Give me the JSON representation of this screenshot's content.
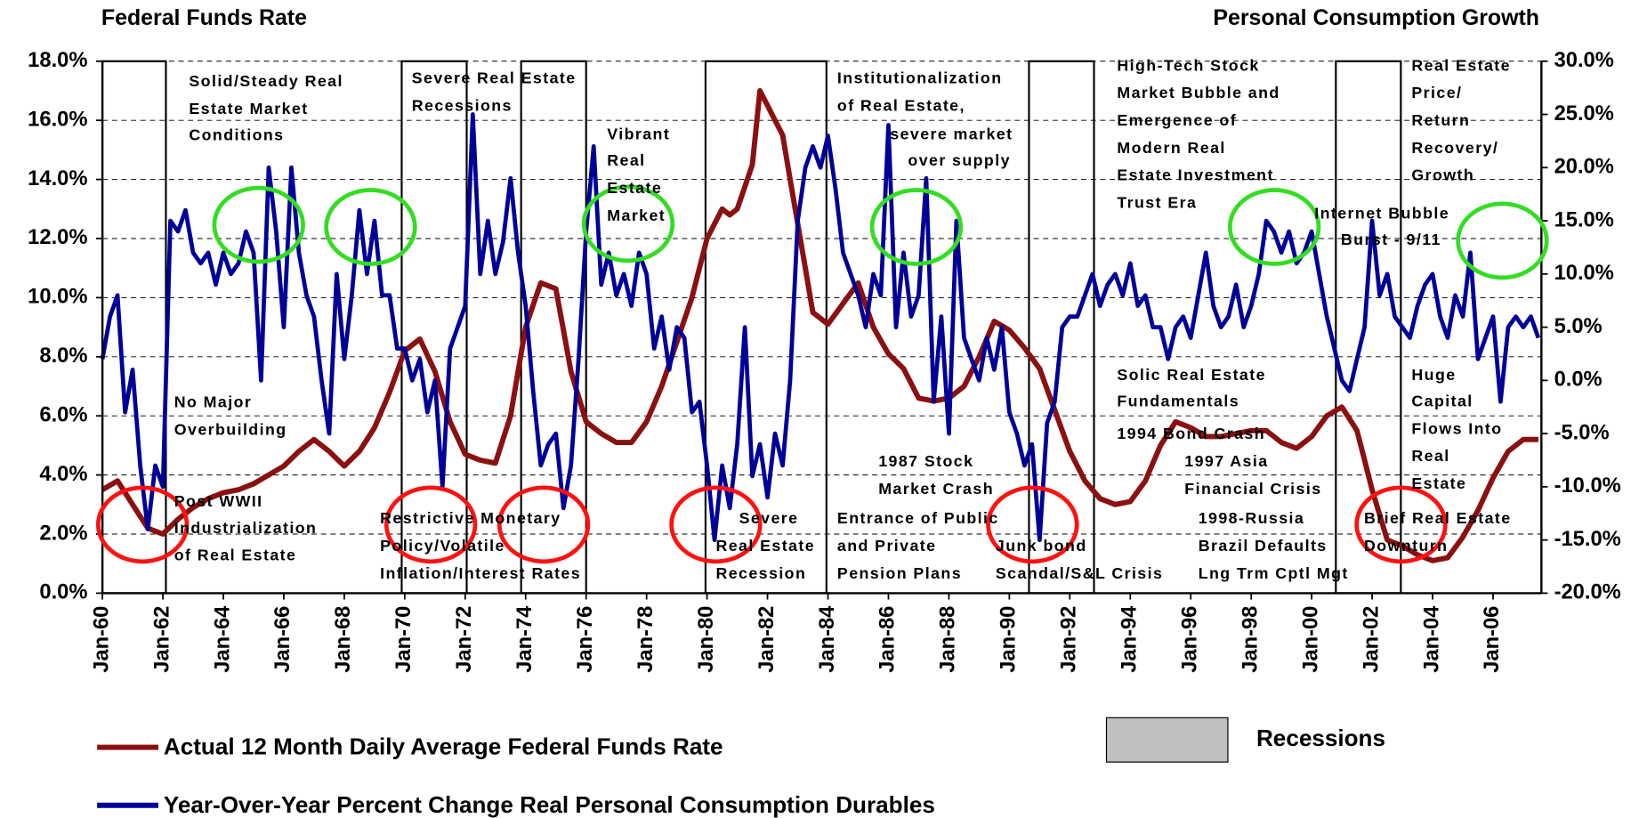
{
  "chart_data": {
    "type": "line",
    "title": "Federal Funds Rate",
    "y2_title": "Personal Consumption Growth",
    "x": [
      1960,
      1960.25,
      1960.5,
      1960.75,
      1961,
      1961.25,
      1961.5,
      1961.75,
      1962,
      1962.25,
      1962.5,
      1962.75,
      1963,
      1963.25,
      1963.5,
      1963.75,
      1964,
      1964.25,
      1964.5,
      1964.75,
      1965,
      1965.25,
      1965.5,
      1965.75,
      1966,
      1966.25,
      1966.5,
      1966.75,
      1967,
      1967.25,
      1967.5,
      1967.75,
      1968,
      1968.25,
      1968.5,
      1968.75,
      1969,
      1969.25,
      1969.5,
      1969.75,
      1970,
      1970.25,
      1970.5,
      1970.75,
      1971,
      1971.25,
      1971.5,
      1971.75,
      1972,
      1972.25,
      1972.5,
      1972.75,
      1973,
      1973.25,
      1973.5,
      1973.75,
      1974,
      1974.25,
      1974.5,
      1974.75,
      1975,
      1975.25,
      1975.5,
      1975.75,
      1976,
      1976.25,
      1976.5,
      1976.75,
      1977,
      1977.25,
      1977.5,
      1977.75,
      1978,
      1978.25,
      1978.5,
      1978.75,
      1979,
      1979.25,
      1979.5,
      1979.75,
      1980,
      1980.25,
      1980.5,
      1980.75,
      1981,
      1981.25,
      1981.5,
      1981.75,
      1982,
      1982.25,
      1982.5,
      1982.75,
      1983,
      1983.25,
      1983.5,
      1983.75,
      1984,
      1984.25,
      1984.5,
      1984.75,
      1985,
      1985.25,
      1985.5,
      1985.75,
      1986,
      1986.25,
      1986.5,
      1986.75,
      1987,
      1987.25,
      1987.5,
      1987.75,
      1988,
      1988.25,
      1988.5,
      1988.75,
      1989,
      1989.25,
      1989.5,
      1989.75,
      1990,
      1990.25,
      1990.5,
      1990.75,
      1991,
      1991.25,
      1991.5,
      1991.75,
      1992,
      1992.25,
      1992.5,
      1992.75,
      1993,
      1993.25,
      1993.5,
      1993.75,
      1994,
      1994.25,
      1994.5,
      1994.75,
      1995,
      1995.25,
      1995.5,
      1995.75,
      1996,
      1996.25,
      1996.5,
      1996.75,
      1997,
      1997.25,
      1997.5,
      1997.75,
      1998,
      1998.25,
      1998.5,
      1998.75,
      1999,
      1999.25,
      1999.5,
      1999.75,
      2000,
      2000.25,
      2000.5,
      2000.75,
      2001,
      2001.25,
      2001.5,
      2001.75,
      2002,
      2002.25,
      2002.5,
      2002.75,
      2003,
      2003.25,
      2003.5,
      2003.75,
      2004,
      2004.25,
      2004.5,
      2004.75,
      2005,
      2005.25,
      2005.5,
      2005.75,
      2006,
      2006.25,
      2006.5,
      2006.75,
      2007,
      2007.25,
      2007.5
    ],
    "series": [
      {
        "name": "Actual 12 Month Daily Average Federal Funds Rate",
        "color": "#8b1010",
        "axis": "y",
        "values": [
          3.5,
          3.65,
          3.8,
          3.4,
          3.0,
          2.6,
          2.2,
          2.1,
          2.0,
          2.25,
          2.5,
          2.7,
          2.9,
          3.05,
          3.2,
          3.3,
          3.4,
          3.45,
          3.5,
          3.6,
          3.7,
          3.85,
          4.0,
          4.15,
          4.3,
          4.55,
          4.8,
          5.0,
          5.2,
          5.0,
          4.8,
          4.55,
          4.3,
          4.55,
          4.8,
          5.2,
          5.6,
          6.2,
          6.8,
          7.5,
          8.2,
          8.4,
          8.6,
          8.05,
          7.5,
          6.65,
          5.8,
          5.25,
          4.7,
          4.6,
          4.5,
          4.45,
          4.4,
          5.2,
          6.0,
          7.5,
          9.0,
          9.75,
          10.5,
          10.4,
          10.3,
          8.9,
          7.5,
          6.65,
          5.8,
          5.6,
          5.4,
          5.25,
          5.1,
          5.1,
          5.1,
          5.45,
          5.8,
          6.4,
          7.0,
          7.75,
          8.5,
          9.25,
          10.0,
          11.0,
          12.0,
          12.5,
          13.0,
          12.8,
          13.0,
          13.75,
          14.5,
          17.0,
          16.5,
          16.0,
          15.5,
          14.0,
          12.5,
          11.0,
          9.5,
          9.3,
          9.1,
          9.45,
          9.8,
          10.15,
          10.5,
          9.75,
          9.0,
          8.55,
          8.1,
          7.85,
          7.6,
          7.1,
          6.6,
          6.55,
          6.5,
          6.55,
          6.6,
          6.8,
          7.0,
          7.5,
          8.0,
          8.6,
          9.2,
          9.05,
          8.9,
          8.6,
          8.3,
          7.95,
          7.6,
          6.9,
          6.2,
          5.5,
          4.8,
          4.3,
          3.8,
          3.5,
          3.2,
          3.1,
          3.0,
          3.05,
          3.1,
          3.45,
          3.8,
          4.4,
          5.0,
          5.4,
          5.8,
          5.7,
          5.6,
          5.45,
          5.3,
          5.3,
          5.3,
          5.35,
          5.4,
          5.45,
          5.5,
          5.5,
          5.5,
          5.3,
          5.1,
          5.0,
          4.9,
          5.1,
          5.3,
          5.65,
          6.0,
          6.15,
          6.3,
          5.9,
          5.5,
          4.5,
          3.5,
          2.65,
          1.8,
          1.7,
          1.6,
          1.45,
          1.3,
          1.2,
          1.1,
          1.15,
          1.2,
          1.55,
          1.9,
          2.35,
          2.8,
          3.35,
          3.9,
          4.35,
          4.8,
          5.0,
          5.2,
          5.2,
          5.2
        ]
      },
      {
        "name": "Year-Over-Year Percent Change Real Personal Consumption Durables",
        "color": "#000099",
        "axis": "y2",
        "values": [
          2,
          6,
          8,
          -3,
          1,
          -8,
          -14,
          -8,
          -10,
          15,
          14,
          16,
          12,
          11,
          12,
          9,
          12,
          10,
          11,
          14,
          12,
          0,
          20,
          14,
          5,
          20,
          12,
          8,
          6,
          0,
          -5,
          10,
          2,
          8,
          16,
          10,
          15,
          8,
          8,
          3,
          3,
          0,
          2,
          -3,
          0,
          -10,
          3,
          5,
          7,
          25,
          10,
          15,
          10,
          13,
          19,
          12,
          7,
          -1,
          -8,
          -6,
          -5,
          -12,
          -8,
          2,
          14,
          22,
          9,
          12,
          8,
          10,
          7,
          12,
          10,
          3,
          6,
          1,
          5,
          4,
          -3,
          -2,
          -8,
          -15,
          -8,
          -12,
          -6,
          5,
          -9,
          -6,
          -11,
          -5,
          -8,
          0,
          15,
          20,
          22,
          20,
          23,
          18,
          12,
          10,
          8,
          5,
          10,
          8,
          24,
          5,
          12,
          6,
          8,
          19,
          -2,
          6,
          -5,
          15,
          4,
          2,
          0,
          4,
          1,
          5,
          -3,
          -5,
          -8,
          -6,
          -15,
          -4,
          -2,
          5,
          6,
          6,
          8,
          10,
          7,
          9,
          10,
          8,
          11,
          7,
          8,
          5,
          5,
          2,
          5,
          6,
          4,
          8,
          12,
          7,
          5,
          6,
          9,
          5,
          7,
          10,
          15,
          14,
          12,
          14,
          11,
          12,
          14,
          10,
          6,
          3,
          0,
          -1,
          2,
          5,
          15,
          8,
          10,
          6,
          5,
          4,
          7,
          9,
          10,
          6,
          4,
          8,
          6,
          12,
          2,
          4,
          6,
          -2,
          5,
          6,
          5,
          6,
          4
        ]
      }
    ],
    "xlim": [
      1960,
      2007.6
    ],
    "xticks": [
      {
        "value": 1960,
        "label": "Jan-60"
      },
      {
        "value": 1962,
        "label": "Jan-62"
      },
      {
        "value": 1964,
        "label": "Jan-64"
      },
      {
        "value": 1966,
        "label": "Jan-66"
      },
      {
        "value": 1968,
        "label": "Jan-68"
      },
      {
        "value": 1970,
        "label": "Jan-70"
      },
      {
        "value": 1972,
        "label": "Jan-72"
      },
      {
        "value": 1974,
        "label": "Jan-74"
      },
      {
        "value": 1976,
        "label": "Jan-76"
      },
      {
        "value": 1978,
        "label": "Jan-78"
      },
      {
        "value": 1980,
        "label": "Jan-80"
      },
      {
        "value": 1982,
        "label": "Jan-82"
      },
      {
        "value": 1984,
        "label": "Jan-84"
      },
      {
        "value": 1986,
        "label": "Jan-86"
      },
      {
        "value": 1988,
        "label": "Jan-88"
      },
      {
        "value": 1990,
        "label": "Jan-90"
      },
      {
        "value": 1992,
        "label": "Jan-92"
      },
      {
        "value": 1994,
        "label": "Jan-94"
      },
      {
        "value": 1996,
        "label": "Jan-96"
      },
      {
        "value": 1998,
        "label": "Jan-98"
      },
      {
        "value": 2000,
        "label": "Jan-00"
      },
      {
        "value": 2002,
        "label": "Jan-02"
      },
      {
        "value": 2004,
        "label": "Jan-04"
      },
      {
        "value": 2006,
        "label": "Jan-06"
      }
    ],
    "ylim": [
      0,
      18
    ],
    "yticks": [
      {
        "value": 0,
        "label": "0.0%"
      },
      {
        "value": 2,
        "label": "2.0%"
      },
      {
        "value": 4,
        "label": "4.0%"
      },
      {
        "value": 6,
        "label": "6.0%"
      },
      {
        "value": 8,
        "label": "8.0%"
      },
      {
        "value": 10,
        "label": "10.0%"
      },
      {
        "value": 12,
        "label": "12.0%"
      },
      {
        "value": 14,
        "label": "14.0%"
      },
      {
        "value": 16,
        "label": "16.0%"
      },
      {
        "value": 18,
        "label": "18.0%"
      }
    ],
    "y2lim": [
      -20,
      30
    ],
    "y2ticks": [
      {
        "value": -20,
        "label": "-20.0%"
      },
      {
        "value": -15,
        "label": "-15.0%"
      },
      {
        "value": -10,
        "label": "-10.0%"
      },
      {
        "value": -5,
        "label": "-5.0%"
      },
      {
        "value": 0,
        "label": "0.0%"
      },
      {
        "value": 5,
        "label": "5.0%"
      },
      {
        "value": 10,
        "label": "10.0%"
      },
      {
        "value": 15,
        "label": "15.0%"
      },
      {
        "value": 20,
        "label": "20.0%"
      },
      {
        "value": 25,
        "label": "25.0%"
      },
      {
        "value": 30,
        "label": "30.0%"
      }
    ],
    "grid": true,
    "recessions_label": "Recessions",
    "recessions_color": "#c0c0c0",
    "recessions": [
      [
        1960,
        1962.1
      ],
      [
        1969.9,
        1972.05
      ],
      [
        1973.85,
        1976
      ],
      [
        1979.95,
        1983.95
      ],
      [
        1990.65,
        1992.8
      ],
      [
        2000.8,
        2002.95
      ]
    ],
    "annotations": [
      "Solid/Steady Real",
      "Estate Market",
      "Conditions",
      "Severe Real Estate",
      "Recessions",
      "Vibrant",
      "Real",
      "Estate",
      "Market",
      "Institutionalization",
      "of Real Estate,",
      "severe market",
      "over supply",
      "High-Tech Stock",
      "Market Bubble and",
      "Emergence of",
      "Modern Real",
      "Estate Investment",
      "Trust Era",
      "Real Estate",
      "Price/",
      "Return",
      "Recovery/",
      "Growth",
      "Internet Bubble",
      "Burst - 9/11",
      "No Major",
      "Overbuilding",
      "Post WWII",
      "Industrialization",
      "of Real Estate",
      "Restrictive Monetary",
      "Policy/Volatile",
      "Inflation/Interest Rates",
      "Severe",
      "Real Estate",
      "Recession",
      "1987 Stock",
      "Market Crash",
      "Entrance of Public",
      "and Private",
      "Pension Plans",
      "Junk bond",
      "Scandal/S&L Crisis",
      "Solic Real Estate",
      "Fundamentals",
      "1994 Bond Crash",
      "1997 Asia",
      "Financial Crisis",
      "1998-Russia",
      "Brazil Defaults",
      "Lng Trm Cptl Mgt",
      "Huge",
      "Capital",
      "Flows Into",
      "Real",
      "Estate",
      "Brief Real Estate",
      "Downturn"
    ]
  }
}
